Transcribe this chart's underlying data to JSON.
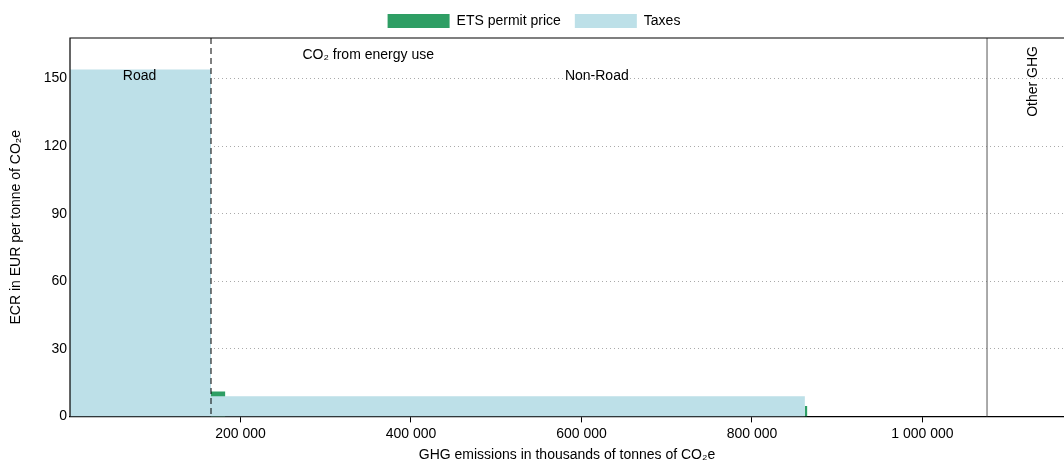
{
  "chart_data": {
    "type": "area",
    "xlabel": "GHG emissions in thousands of tonnes of CO₂e",
    "ylabel": "ECR in EUR per tonne of CO₂e",
    "x": [
      0,
      165400,
      165400,
      182000,
      182000,
      862000,
      862000,
      865000,
      865000
    ],
    "series": [
      {
        "name": "Taxes",
        "color": "#bde0e8",
        "values": [
          154,
          154,
          9,
          9,
          9,
          9,
          0,
          0,
          0
        ]
      },
      {
        "name": "ETS permit price",
        "color": "#2e9e64",
        "values": [
          0,
          0,
          11,
          11,
          0,
          0,
          4.6,
          4.6,
          0
        ]
      }
    ],
    "xlim": [
      0,
      1166000
    ],
    "ylim": [
      0,
      168
    ],
    "xticks": [
      {
        "value": 200000,
        "label": "200 000"
      },
      {
        "value": 400000,
        "label": "400 000"
      },
      {
        "value": 600000,
        "label": "600 000"
      },
      {
        "value": 800000,
        "label": "800 000"
      },
      {
        "value": 1000000,
        "label": "1 000 000"
      }
    ],
    "yticks": [
      0,
      30,
      60,
      90,
      120,
      150
    ],
    "grid": "y",
    "legend": "top",
    "ref_lines": [
      {
        "axis": "x",
        "value": 165400,
        "color": "#000000",
        "line_style": "dashed"
      },
      {
        "axis": "x",
        "value": 1075700,
        "color": "#555555",
        "line_style": "solid",
        "label": "Other GHG"
      }
    ],
    "annotations": [
      "CO₂ from energy use",
      "Road",
      "Non-Road"
    ]
  }
}
